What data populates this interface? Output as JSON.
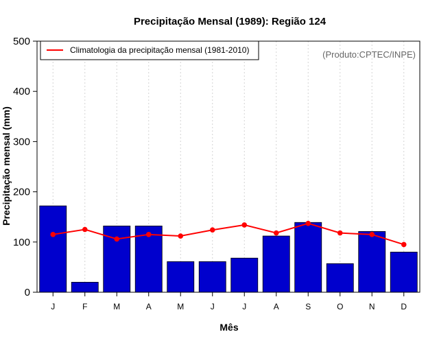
{
  "chart_data": {
    "type": "bar",
    "title": "Precipitação Mensal (1989): Região 124",
    "xlabel": "Mês",
    "ylabel": "Precipitação mensal (mm)",
    "ylim": [
      0,
      500
    ],
    "yticks": [
      0,
      100,
      200,
      300,
      400,
      500
    ],
    "categories": [
      "J",
      "F",
      "M",
      "A",
      "M",
      "J",
      "J",
      "A",
      "S",
      "O",
      "N",
      "D"
    ],
    "series": [
      {
        "name": "Precipitação mensal (1989)",
        "kind": "bar",
        "color": "#0000cd",
        "values": [
          172,
          20,
          132,
          132,
          61,
          61,
          68,
          112,
          139,
          57,
          121,
          80
        ]
      },
      {
        "name": "Climatologia da precipitação mensal (1981-2010)",
        "kind": "line",
        "color": "#ff0000",
        "values": [
          115,
          125,
          106,
          115,
          112,
          124,
          134,
          118,
          137,
          118,
          115,
          95
        ]
      }
    ],
    "legend": {
      "position": "top-left",
      "label": "Climatologia da precipitação mensal (1981-2010)"
    },
    "annotation": "(Produto:CPTEC/INPE)",
    "grid": "vertical dotted"
  }
}
